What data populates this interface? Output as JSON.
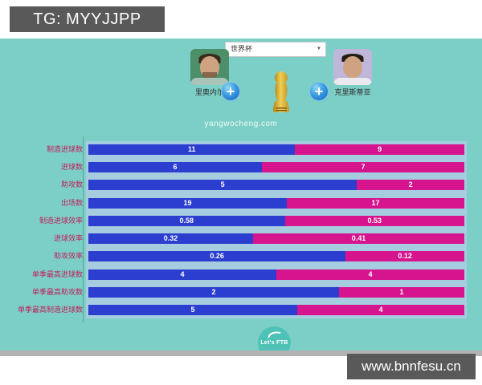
{
  "header": {
    "tg_label": "TG: MYYJJPP"
  },
  "footer": {
    "site_url": "www.bnnfesu.cn"
  },
  "panel": {
    "dropdown": {
      "selected": "世界杯"
    },
    "player_left": {
      "name": "里奥内尔"
    },
    "player_right": {
      "name": "克里斯蒂亚"
    },
    "plus_label": "+",
    "watermark": "yangwocheng.com",
    "logo_text": "Let's FTB"
  },
  "colors": {
    "panel_teal": "#7ccfc6",
    "bar_blue": "#2b3ed0",
    "bar_magenta": "#d5148d",
    "label_red": "#c01f5f",
    "badge_gray": "#595959",
    "bar_track": "#a6cce0"
  },
  "chart_data": {
    "type": "bar",
    "orientation": "horizontal-stacked-comparison",
    "categories": [
      "制造进球数",
      "进球数",
      "助攻数",
      "出场数",
      "制造进球效率",
      "进球效率",
      "助攻效率",
      "单季最高进球数",
      "单季最高助攻数",
      "单季最高制造进球数"
    ],
    "series": [
      {
        "name": "里奥内尔",
        "color": "#2b3ed0",
        "values": [
          11,
          6,
          5,
          19,
          0.58,
          0.32,
          0.26,
          4,
          2,
          5
        ]
      },
      {
        "name": "克里斯蒂亚",
        "color": "#d5148d",
        "values": [
          9,
          7,
          2,
          17,
          0.53,
          0.41,
          0.12,
          4,
          1,
          4
        ]
      }
    ],
    "legend_position": "none",
    "grid": false
  }
}
